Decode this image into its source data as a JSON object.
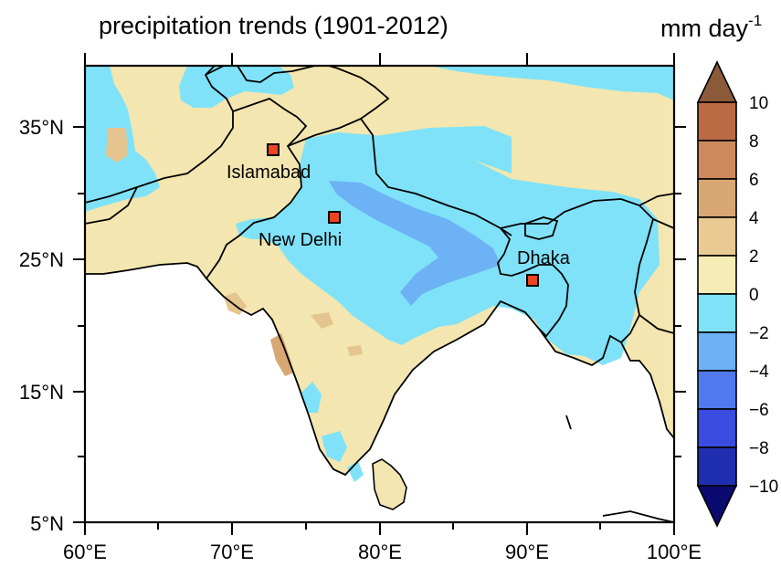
{
  "map": {
    "title": "precipitation trends (1901-2012)",
    "units": "mm day",
    "units_exp": "-1",
    "lon_labels": [
      "60°E",
      "70°E",
      "80°E",
      "90°E",
      "100°E"
    ],
    "lat_labels": [
      "35°N",
      "25°N",
      "15°N",
      "5°N"
    ],
    "cities": [
      {
        "name": "Islamabad",
        "lon": 73.1,
        "lat": 33.7
      },
      {
        "name": "New Delhi",
        "lon": 77.2,
        "lat": 28.6
      },
      {
        "name": "Dhaka",
        "lon": 90.4,
        "lat": 23.8
      }
    ],
    "colorbar": {
      "labels": [
        "10",
        "8",
        "6",
        "4",
        "2",
        "0",
        "−2",
        "−4",
        "−6",
        "−8",
        "−10"
      ],
      "colors_top_to_bottom": [
        "#8a5a3a",
        "#bb6a44",
        "#cc8a5c",
        "#d9a773",
        "#e8ca92",
        "#f5ecb6",
        "#7fe2f8",
        "#6cb2f5",
        "#5079ed",
        "#3a4de0",
        "#1f2fb0",
        "#0a0a70"
      ]
    },
    "fill_colors": {
      "wet_light": "#f3e6b0",
      "wet_medium": "#e5c58f",
      "wet_strong": "#d9a773",
      "dry_light": "#7fe2f8",
      "dry_medium": "#6cb2f5",
      "ocean": "#ffffff",
      "border": "#000000",
      "marker": "#ee4422"
    }
  }
}
